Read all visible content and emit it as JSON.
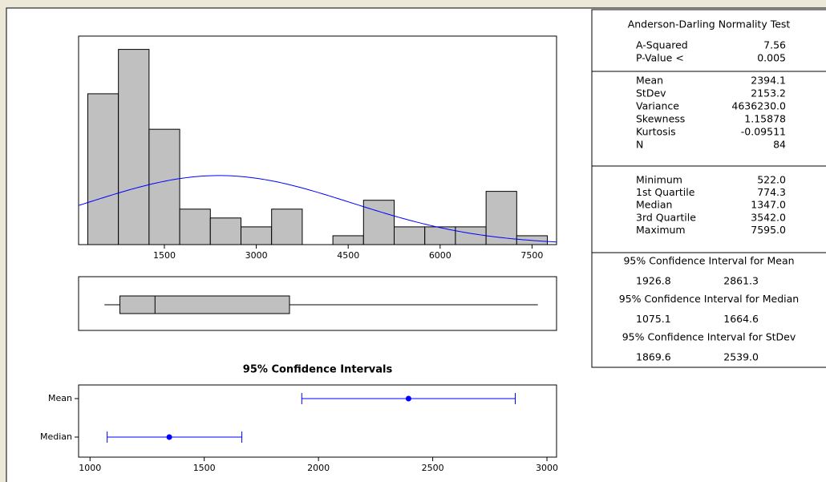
{
  "chart_data": [
    {
      "type": "histogram",
      "bins": [
        250,
        750,
        1250,
        1750,
        2250,
        2750,
        3250,
        3750,
        4250,
        4750,
        5250,
        5750,
        6250,
        6750,
        7250,
        7750
      ],
      "counts": [
        17,
        22,
        13,
        4,
        3,
        2,
        4,
        0,
        1,
        5,
        2,
        2,
        2,
        6,
        1
      ],
      "color": "#c0c0c0",
      "xlim": [
        100,
        7900
      ],
      "xticks": [
        1500,
        3000,
        4500,
        6000,
        7500
      ],
      "ylim": [
        0,
        23.5
      ],
      "fit": {
        "mean": 2394.1,
        "stdev": 2153.2,
        "color": "#0000ff"
      }
    },
    {
      "type": "boxplot",
      "min": 522.0,
      "q1": 774.3,
      "median": 1347.0,
      "q3": 3542.0,
      "max": 7595.0,
      "color": "#c0c0c0",
      "xlim": [
        100,
        7900
      ]
    },
    {
      "type": "interval",
      "title": "95% Confidence Intervals",
      "categories": [
        "Mean",
        "Median"
      ],
      "values": [
        2394.1,
        1347.0
      ],
      "lower": [
        1926.8,
        1075.1
      ],
      "upper": [
        2861.3,
        1664.6
      ],
      "color": "#0000ff",
      "xlim": [
        950,
        3042
      ],
      "xticks": [
        1000,
        1500,
        2000,
        2500,
        3000
      ]
    }
  ],
  "table": {
    "normality": {
      "title": "Anderson-Darling Normality Test",
      "rows": [
        [
          "A-Squared",
          "7.56"
        ],
        [
          "P-Value <",
          "0.005"
        ]
      ]
    },
    "moments": {
      "rows": [
        [
          "Mean",
          "2394.1"
        ],
        [
          "StDev",
          "2153.2"
        ],
        [
          "Variance",
          "4636230.0"
        ],
        [
          "Skewness",
          "1.15878"
        ],
        [
          "Kurtosis",
          "-0.09511"
        ],
        [
          "N",
          "84"
        ]
      ]
    },
    "quantiles": {
      "rows": [
        [
          "Minimum",
          "522.0"
        ],
        [
          "1st Quartile",
          "774.3"
        ],
        [
          "Median",
          "1347.0"
        ],
        [
          "3rd Quartile",
          "3542.0"
        ],
        [
          "Maximum",
          "7595.0"
        ]
      ]
    },
    "intervals": [
      {
        "title": "95% Confidence Interval for Mean",
        "values": [
          "1926.8",
          "2861.3"
        ]
      },
      {
        "title": "95% Confidence Interval for Median",
        "values": [
          "1075.1",
          "1664.6"
        ]
      },
      {
        "title": "95% Confidence Interval for StDev",
        "values": [
          "1869.6",
          "2539.0"
        ]
      }
    ]
  }
}
